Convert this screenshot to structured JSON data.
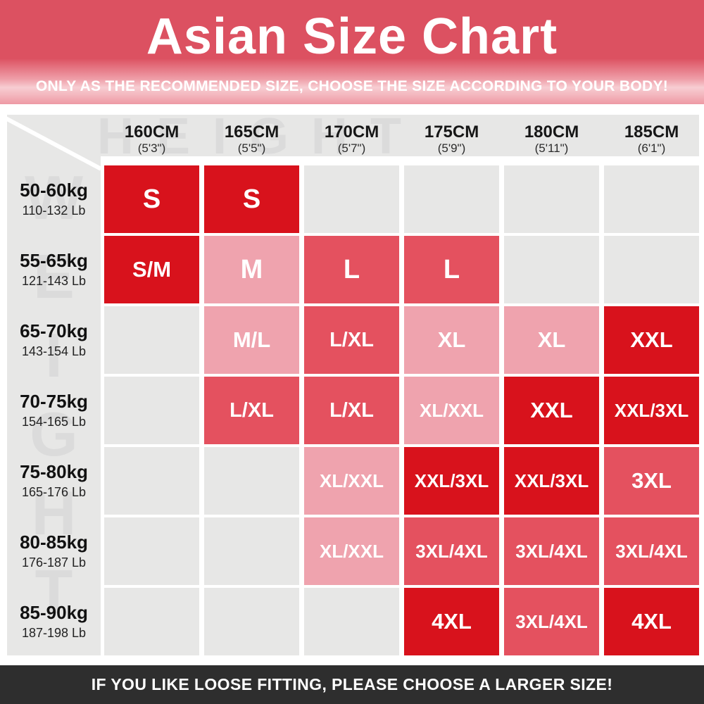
{
  "header": {
    "title": "Asian Size Chart",
    "subtitle": "ONLY AS THE RECOMMENDED SIZE, CHOOSE THE SIZE ACCORDING TO YOUR BODY!"
  },
  "watermarks": {
    "height": "HEIGHT",
    "weight": "WEIGHT"
  },
  "footer": {
    "note": "IF YOU LIKE LOOSE FITTING, PLEASE CHOOSE A LARGER SIZE!"
  },
  "colors": {
    "banner_red": "#dc5161",
    "banner_light": "#ee99a4",
    "bright_red": "#d8121c",
    "medium_red": "#e4515f",
    "light_pink": "#efa3ae",
    "cell_gray": "#e7e7e6",
    "watermark_gray": "#dbdbdb",
    "footer_bg": "#2e2e2e"
  },
  "table": {
    "columns": [
      {
        "cm": "160CM",
        "ft": "(5'3\")"
      },
      {
        "cm": "165CM",
        "ft": "(5'5\")"
      },
      {
        "cm": "170CM",
        "ft": "(5'7\")"
      },
      {
        "cm": "175CM",
        "ft": "(5'9\")"
      },
      {
        "cm": "180CM",
        "ft": "(5'11\")"
      },
      {
        "cm": "185CM",
        "ft": "(6'1\")"
      }
    ],
    "rows": [
      {
        "kg": "50-60kg",
        "lb": "110-132 Lb",
        "cells": [
          {
            "label": "S",
            "tone": "red"
          },
          {
            "label": "S",
            "tone": "red"
          },
          {
            "label": "",
            "tone": "empty"
          },
          {
            "label": "",
            "tone": "empty"
          },
          {
            "label": "",
            "tone": "empty"
          },
          {
            "label": "",
            "tone": "empty"
          }
        ]
      },
      {
        "kg": "55-65kg",
        "lb": "121-143 Lb",
        "cells": [
          {
            "label": "S/M",
            "tone": "red"
          },
          {
            "label": "M",
            "tone": "pink"
          },
          {
            "label": "L",
            "tone": "mid"
          },
          {
            "label": "L",
            "tone": "mid"
          },
          {
            "label": "",
            "tone": "empty"
          },
          {
            "label": "",
            "tone": "empty"
          }
        ]
      },
      {
        "kg": "65-70kg",
        "lb": "143-154 Lb",
        "cells": [
          {
            "label": "",
            "tone": "empty"
          },
          {
            "label": "M/L",
            "tone": "pink"
          },
          {
            "label": "L/XL",
            "tone": "mid"
          },
          {
            "label": "XL",
            "tone": "pink"
          },
          {
            "label": "XL",
            "tone": "pink"
          },
          {
            "label": "XXL",
            "tone": "red"
          }
        ]
      },
      {
        "kg": "70-75kg",
        "lb": "154-165 Lb",
        "cells": [
          {
            "label": "",
            "tone": "empty"
          },
          {
            "label": "L/XL",
            "tone": "mid"
          },
          {
            "label": "L/XL",
            "tone": "mid"
          },
          {
            "label": "XL/XXL",
            "tone": "pink"
          },
          {
            "label": "XXL",
            "tone": "red"
          },
          {
            "label": "XXL/3XL",
            "tone": "red"
          }
        ]
      },
      {
        "kg": "75-80kg",
        "lb": "165-176 Lb",
        "cells": [
          {
            "label": "",
            "tone": "empty"
          },
          {
            "label": "",
            "tone": "empty"
          },
          {
            "label": "XL/XXL",
            "tone": "pink"
          },
          {
            "label": "XXL/3XL",
            "tone": "red"
          },
          {
            "label": "XXL/3XL",
            "tone": "red"
          },
          {
            "label": "3XL",
            "tone": "mid"
          }
        ]
      },
      {
        "kg": "80-85kg",
        "lb": "176-187 Lb",
        "cells": [
          {
            "label": "",
            "tone": "empty"
          },
          {
            "label": "",
            "tone": "empty"
          },
          {
            "label": "XL/XXL",
            "tone": "pink"
          },
          {
            "label": "3XL/4XL",
            "tone": "mid"
          },
          {
            "label": "3XL/4XL",
            "tone": "mid"
          },
          {
            "label": "3XL/4XL",
            "tone": "mid"
          }
        ]
      },
      {
        "kg": "85-90kg",
        "lb": "187-198 Lb",
        "cells": [
          {
            "label": "",
            "tone": "empty"
          },
          {
            "label": "",
            "tone": "empty"
          },
          {
            "label": "",
            "tone": "empty"
          },
          {
            "label": "4XL",
            "tone": "red"
          },
          {
            "label": "3XL/4XL",
            "tone": "mid"
          },
          {
            "label": "4XL",
            "tone": "red"
          }
        ]
      }
    ]
  },
  "chart_data": {
    "type": "table",
    "title": "Asian Size Chart",
    "columns_height": [
      "160CM (5'3\")",
      "165CM (5'5\")",
      "170CM (5'7\")",
      "175CM (5'9\")",
      "180CM (5'11\")",
      "185CM (6'1\")"
    ],
    "rows_weight": [
      "50-60kg (110-132 Lb)",
      "55-65kg (121-143 Lb)",
      "65-70kg (143-154 Lb)",
      "70-75kg (154-165 Lb)",
      "75-80kg (165-176 Lb)",
      "80-85kg (176-187 Lb)",
      "85-90kg (187-198 Lb)"
    ],
    "cells": [
      [
        "S",
        "S",
        "",
        "",
        "",
        ""
      ],
      [
        "S/M",
        "M",
        "L",
        "L",
        "",
        ""
      ],
      [
        "",
        "M/L",
        "L/XL",
        "XL",
        "XL",
        "XXL"
      ],
      [
        "",
        "L/XL",
        "L/XL",
        "XL/XXL",
        "XXL",
        "XXL/3XL"
      ],
      [
        "",
        "",
        "XL/XXL",
        "XXL/3XL",
        "XXL/3XL",
        "3XL"
      ],
      [
        "",
        "",
        "XL/XXL",
        "3XL/4XL",
        "3XL/4XL",
        "3XL/4XL"
      ],
      [
        "",
        "",
        "",
        "4XL",
        "3XL/4XL",
        "4XL"
      ]
    ]
  }
}
